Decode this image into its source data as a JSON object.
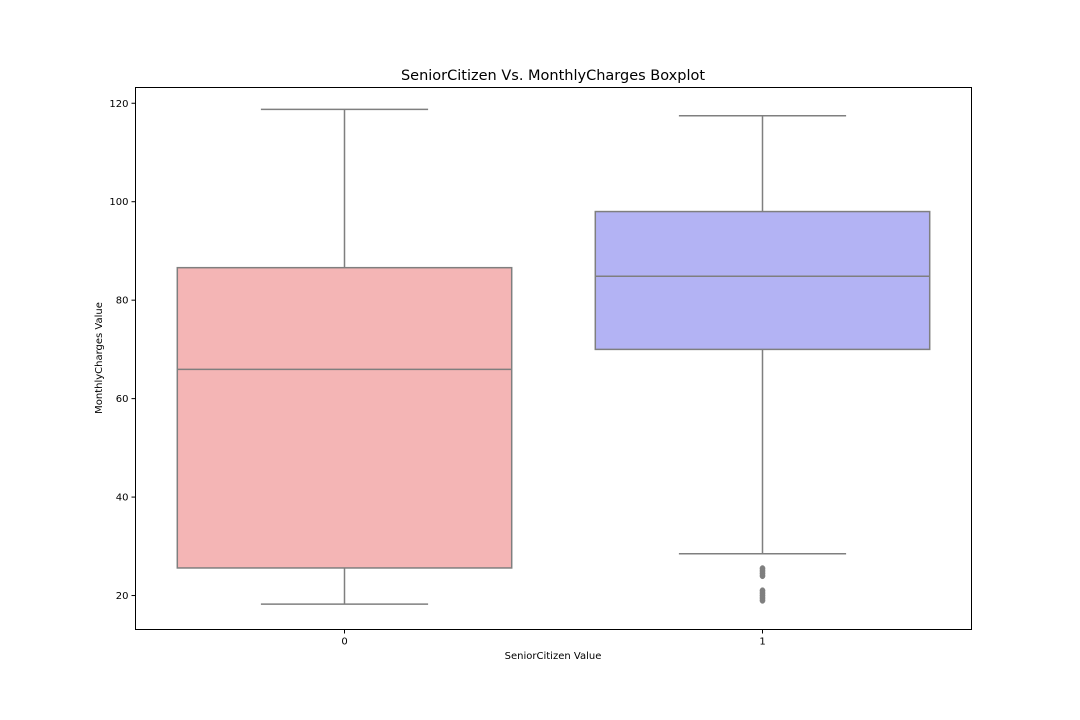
{
  "chart_data": {
    "type": "boxplot",
    "title": "SeniorCitizen Vs. MonthlyCharges Boxplot",
    "xlabel": "SeniorCitizen Value",
    "ylabel": "MonthlyCharges Value",
    "categories": [
      "0",
      "1"
    ],
    "ylim": [
      13.1,
      123.2
    ],
    "yticks": [
      20,
      40,
      60,
      80,
      100,
      120
    ],
    "grid": false,
    "boxes": [
      {
        "category": "0",
        "whisker_low": 18.25,
        "q1": 25.6,
        "median": 65.95,
        "q3": 86.6,
        "whisker_high": 118.75,
        "outliers": [],
        "color": "#f4b5b5"
      },
      {
        "category": "1",
        "whisker_low": 28.5,
        "q1": 70.0,
        "median": 84.85,
        "q3": 98.0,
        "whisker_high": 117.45,
        "outliers": [
          19.0,
          19.5,
          20.0,
          20.5,
          21.0,
          24.0,
          24.5,
          25.0,
          25.5
        ],
        "color": "#b3b3f4"
      }
    ]
  }
}
